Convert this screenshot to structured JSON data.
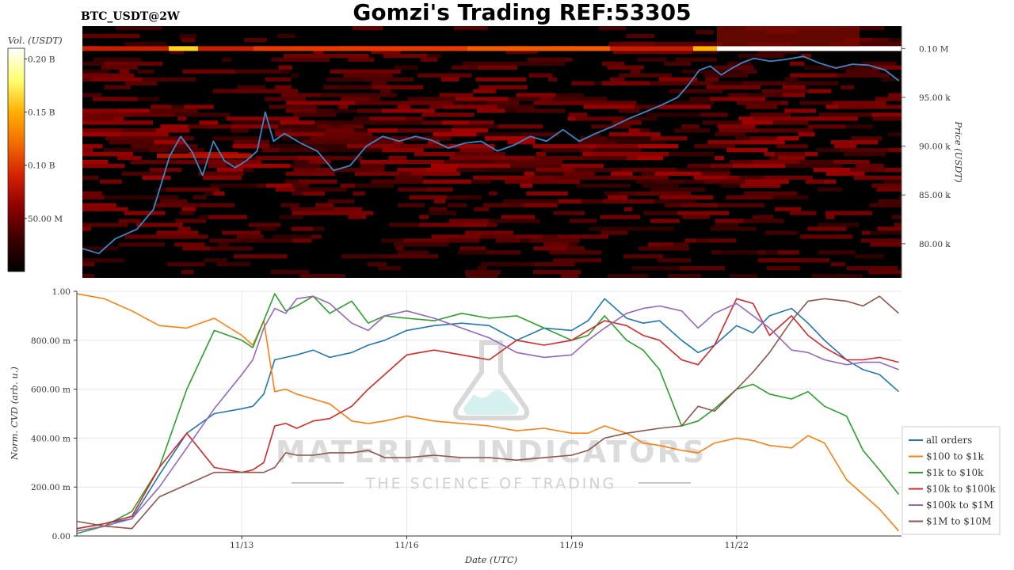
{
  "header": {
    "symbol": "BTC_USDT@2W",
    "title": "Gomzi's Trading REF:53305"
  },
  "watermark": {
    "brand": "MATERIAL INDICATORS",
    "tagline": "THE SCIENCE OF TRADING"
  },
  "colorbar": {
    "label": "Vol. (USDT)",
    "ticks": [
      "0.20 B",
      "0.15 B",
      "0.10 B",
      "50.00 M"
    ],
    "tick_values": [
      200000000,
      150000000,
      100000000,
      50000000
    ],
    "range": [
      0,
      210000000
    ],
    "colors": [
      "#000000",
      "#3a0000",
      "#8a0000",
      "#d42000",
      "#f26a00",
      "#ffb000",
      "#ffff70",
      "#ffffff"
    ]
  },
  "chart_data": [
    {
      "type": "heatmap",
      "title": "Gomzi's Trading REF:53305",
      "ylabel": "Price (USDT)",
      "y_ticks": [
        "0.10 M",
        "95.00 k",
        "90.00 k",
        "85.00 k",
        "80.00 k"
      ],
      "y_tick_values": [
        100000,
        95000,
        90000,
        85000,
        80000
      ],
      "ylim": [
        76500,
        102300
      ],
      "x_range": [
        "11/10",
        "11/25"
      ],
      "price_line_color": "#3a87c8",
      "price_series": {
        "name": "",
        "t": [
          10.0,
          10.3,
          10.6,
          11.0,
          11.3,
          11.6,
          11.8,
          12.0,
          12.2,
          12.4,
          12.6,
          12.8,
          13.0,
          13.2,
          13.35,
          13.5,
          13.7,
          14.0,
          14.3,
          14.6,
          14.9,
          15.2,
          15.5,
          15.8,
          16.1,
          16.4,
          16.7,
          17.0,
          17.3,
          17.6,
          17.9,
          18.2,
          18.5,
          18.8,
          19.1,
          19.4,
          19.7,
          20.0,
          20.3,
          20.6,
          20.9,
          21.1,
          21.3,
          21.5,
          21.7,
          21.9,
          22.1,
          22.3,
          22.6,
          22.9,
          23.2,
          23.5,
          23.8,
          24.1,
          24.4,
          24.7,
          24.95
        ],
        "price": [
          79500,
          79000,
          80500,
          81500,
          83500,
          89000,
          91000,
          89500,
          87000,
          90500,
          88500,
          87800,
          88500,
          89500,
          93500,
          90500,
          91300,
          90300,
          89500,
          87500,
          88000,
          90000,
          91000,
          90500,
          91000,
          90600,
          89800,
          90300,
          90500,
          89500,
          90100,
          91000,
          90500,
          91700,
          90500,
          91300,
          92000,
          92800,
          93500,
          94200,
          95000,
          96300,
          97800,
          98200,
          97300,
          98000,
          98600,
          99000,
          98700,
          98900,
          99200,
          98500,
          98000,
          98400,
          98300,
          97800,
          96700
        ]
      }
    },
    {
      "type": "line",
      "xlabel": "Date (UTC)",
      "ylabel": "Norm. CVD (arb. u.)",
      "ylim": [
        0,
        1
      ],
      "x_range": [
        "11/10",
        "11/25"
      ],
      "x_ticks": [
        "11/13",
        "11/16",
        "11/19",
        "11/22"
      ],
      "x_tick_values": [
        13,
        16,
        19,
        22
      ],
      "y_ticks": [
        "0.00",
        "200.00 m",
        "400.00 m",
        "600.00 m",
        "800.00 m",
        "1.00"
      ],
      "y_tick_values": [
        0,
        0.2,
        0.4,
        0.6,
        0.8,
        1.0
      ],
      "legend_position": "bottom-right",
      "x": [
        10.0,
        10.5,
        11.0,
        11.5,
        12.0,
        12.5,
        13.0,
        13.2,
        13.4,
        13.6,
        13.8,
        14.0,
        14.3,
        14.6,
        15.0,
        15.3,
        15.6,
        16.0,
        16.5,
        17.0,
        17.5,
        18.0,
        18.5,
        19.0,
        19.3,
        19.6,
        20.0,
        20.3,
        20.6,
        21.0,
        21.3,
        21.6,
        22.0,
        22.3,
        22.6,
        23.0,
        23.3,
        23.6,
        24.0,
        24.3,
        24.6,
        24.95
      ],
      "series": [
        {
          "name": "all orders",
          "color": "#1f77b4",
          "values": [
            0.03,
            0.05,
            0.07,
            0.25,
            0.42,
            0.5,
            0.52,
            0.53,
            0.58,
            0.72,
            0.73,
            0.74,
            0.76,
            0.73,
            0.75,
            0.78,
            0.8,
            0.84,
            0.86,
            0.87,
            0.86,
            0.8,
            0.85,
            0.84,
            0.88,
            0.97,
            0.89,
            0.87,
            0.88,
            0.8,
            0.75,
            0.78,
            0.86,
            0.83,
            0.9,
            0.93,
            0.87,
            0.8,
            0.72,
            0.68,
            0.66,
            0.59
          ]
        },
        {
          "name": "$100 to $1k",
          "color": "#ff7f0e",
          "values": [
            0.99,
            0.97,
            0.92,
            0.86,
            0.85,
            0.89,
            0.82,
            0.78,
            0.88,
            0.59,
            0.6,
            0.58,
            0.56,
            0.54,
            0.47,
            0.46,
            0.47,
            0.49,
            0.47,
            0.46,
            0.45,
            0.43,
            0.44,
            0.42,
            0.42,
            0.45,
            0.42,
            0.38,
            0.37,
            0.35,
            0.34,
            0.38,
            0.4,
            0.39,
            0.37,
            0.36,
            0.41,
            0.38,
            0.23,
            0.17,
            0.11,
            0.02
          ]
        },
        {
          "name": "$1k to $10k",
          "color": "#2ca02c",
          "values": [
            0.01,
            0.04,
            0.1,
            0.28,
            0.6,
            0.84,
            0.8,
            0.77,
            0.88,
            0.99,
            0.92,
            0.94,
            0.98,
            0.91,
            0.96,
            0.87,
            0.9,
            0.89,
            0.88,
            0.91,
            0.89,
            0.9,
            0.85,
            0.8,
            0.82,
            0.9,
            0.8,
            0.76,
            0.68,
            0.45,
            0.47,
            0.52,
            0.6,
            0.62,
            0.58,
            0.56,
            0.59,
            0.53,
            0.49,
            0.35,
            0.27,
            0.17
          ]
        },
        {
          "name": "$10k to $100k",
          "color": "#d62728",
          "values": [
            0.03,
            0.05,
            0.08,
            0.28,
            0.42,
            0.28,
            0.26,
            0.27,
            0.3,
            0.45,
            0.46,
            0.44,
            0.47,
            0.48,
            0.53,
            0.6,
            0.66,
            0.74,
            0.76,
            0.74,
            0.72,
            0.8,
            0.78,
            0.8,
            0.84,
            0.88,
            0.86,
            0.82,
            0.8,
            0.72,
            0.7,
            0.78,
            0.97,
            0.95,
            0.82,
            0.9,
            0.82,
            0.77,
            0.72,
            0.72,
            0.73,
            0.71
          ]
        },
        {
          "name": "$100k to $1M",
          "color": "#9467bd",
          "values": [
            0.02,
            0.04,
            0.07,
            0.2,
            0.36,
            0.52,
            0.66,
            0.72,
            0.85,
            0.93,
            0.91,
            0.97,
            0.98,
            0.95,
            0.87,
            0.84,
            0.9,
            0.92,
            0.89,
            0.85,
            0.81,
            0.75,
            0.73,
            0.74,
            0.8,
            0.85,
            0.91,
            0.93,
            0.94,
            0.92,
            0.85,
            0.91,
            0.95,
            0.9,
            0.85,
            0.76,
            0.75,
            0.72,
            0.7,
            0.71,
            0.71,
            0.68
          ]
        },
        {
          "name": "$1M to $10M",
          "color": "#8c564b",
          "values": [
            0.06,
            0.04,
            0.03,
            0.16,
            0.21,
            0.26,
            0.26,
            0.26,
            0.26,
            0.28,
            0.34,
            0.33,
            0.33,
            0.34,
            0.34,
            0.35,
            0.32,
            0.32,
            0.33,
            0.32,
            0.32,
            0.31,
            0.32,
            0.33,
            0.35,
            0.4,
            0.42,
            0.43,
            0.44,
            0.45,
            0.53,
            0.51,
            0.6,
            0.67,
            0.75,
            0.88,
            0.96,
            0.97,
            0.96,
            0.94,
            0.98,
            0.91
          ]
        }
      ]
    }
  ]
}
